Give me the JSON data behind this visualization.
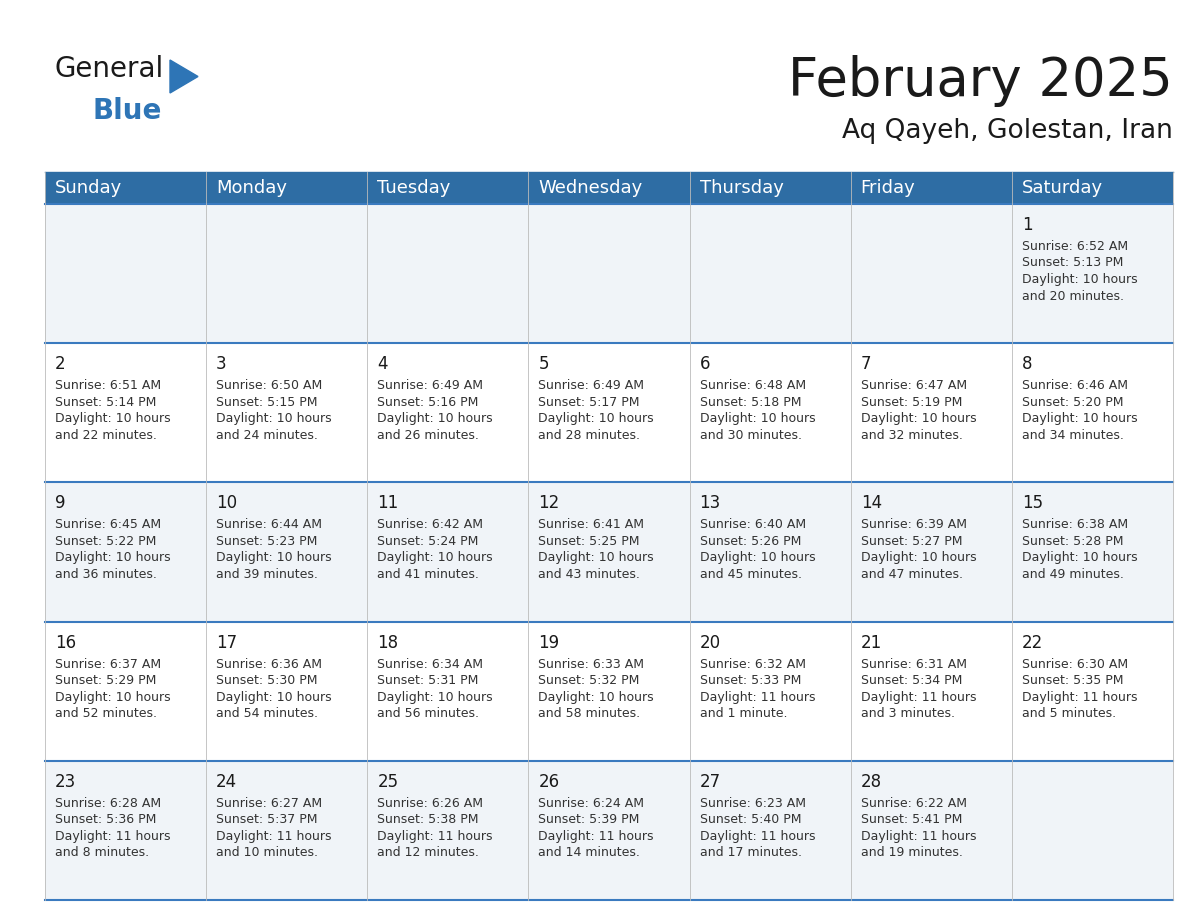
{
  "title": "February 2025",
  "subtitle": "Aq Qayeh, Golestan, Iran",
  "header_bg": "#2E6DA4",
  "header_text": "#FFFFFF",
  "row_bg_odd": "#F0F4F8",
  "row_bg_even": "#FFFFFF",
  "cell_border_color": "#3a7abf",
  "vert_border_color": "#BBBBBB",
  "day_headers": [
    "Sunday",
    "Monday",
    "Tuesday",
    "Wednesday",
    "Thursday",
    "Friday",
    "Saturday"
  ],
  "weeks": [
    [
      {
        "day": null,
        "info": null
      },
      {
        "day": null,
        "info": null
      },
      {
        "day": null,
        "info": null
      },
      {
        "day": null,
        "info": null
      },
      {
        "day": null,
        "info": null
      },
      {
        "day": null,
        "info": null
      },
      {
        "day": 1,
        "info": "Sunrise: 6:52 AM\nSunset: 5:13 PM\nDaylight: 10 hours\nand 20 minutes."
      }
    ],
    [
      {
        "day": 2,
        "info": "Sunrise: 6:51 AM\nSunset: 5:14 PM\nDaylight: 10 hours\nand 22 minutes."
      },
      {
        "day": 3,
        "info": "Sunrise: 6:50 AM\nSunset: 5:15 PM\nDaylight: 10 hours\nand 24 minutes."
      },
      {
        "day": 4,
        "info": "Sunrise: 6:49 AM\nSunset: 5:16 PM\nDaylight: 10 hours\nand 26 minutes."
      },
      {
        "day": 5,
        "info": "Sunrise: 6:49 AM\nSunset: 5:17 PM\nDaylight: 10 hours\nand 28 minutes."
      },
      {
        "day": 6,
        "info": "Sunrise: 6:48 AM\nSunset: 5:18 PM\nDaylight: 10 hours\nand 30 minutes."
      },
      {
        "day": 7,
        "info": "Sunrise: 6:47 AM\nSunset: 5:19 PM\nDaylight: 10 hours\nand 32 minutes."
      },
      {
        "day": 8,
        "info": "Sunrise: 6:46 AM\nSunset: 5:20 PM\nDaylight: 10 hours\nand 34 minutes."
      }
    ],
    [
      {
        "day": 9,
        "info": "Sunrise: 6:45 AM\nSunset: 5:22 PM\nDaylight: 10 hours\nand 36 minutes."
      },
      {
        "day": 10,
        "info": "Sunrise: 6:44 AM\nSunset: 5:23 PM\nDaylight: 10 hours\nand 39 minutes."
      },
      {
        "day": 11,
        "info": "Sunrise: 6:42 AM\nSunset: 5:24 PM\nDaylight: 10 hours\nand 41 minutes."
      },
      {
        "day": 12,
        "info": "Sunrise: 6:41 AM\nSunset: 5:25 PM\nDaylight: 10 hours\nand 43 minutes."
      },
      {
        "day": 13,
        "info": "Sunrise: 6:40 AM\nSunset: 5:26 PM\nDaylight: 10 hours\nand 45 minutes."
      },
      {
        "day": 14,
        "info": "Sunrise: 6:39 AM\nSunset: 5:27 PM\nDaylight: 10 hours\nand 47 minutes."
      },
      {
        "day": 15,
        "info": "Sunrise: 6:38 AM\nSunset: 5:28 PM\nDaylight: 10 hours\nand 49 minutes."
      }
    ],
    [
      {
        "day": 16,
        "info": "Sunrise: 6:37 AM\nSunset: 5:29 PM\nDaylight: 10 hours\nand 52 minutes."
      },
      {
        "day": 17,
        "info": "Sunrise: 6:36 AM\nSunset: 5:30 PM\nDaylight: 10 hours\nand 54 minutes."
      },
      {
        "day": 18,
        "info": "Sunrise: 6:34 AM\nSunset: 5:31 PM\nDaylight: 10 hours\nand 56 minutes."
      },
      {
        "day": 19,
        "info": "Sunrise: 6:33 AM\nSunset: 5:32 PM\nDaylight: 10 hours\nand 58 minutes."
      },
      {
        "day": 20,
        "info": "Sunrise: 6:32 AM\nSunset: 5:33 PM\nDaylight: 11 hours\nand 1 minute."
      },
      {
        "day": 21,
        "info": "Sunrise: 6:31 AM\nSunset: 5:34 PM\nDaylight: 11 hours\nand 3 minutes."
      },
      {
        "day": 22,
        "info": "Sunrise: 6:30 AM\nSunset: 5:35 PM\nDaylight: 11 hours\nand 5 minutes."
      }
    ],
    [
      {
        "day": 23,
        "info": "Sunrise: 6:28 AM\nSunset: 5:36 PM\nDaylight: 11 hours\nand 8 minutes."
      },
      {
        "day": 24,
        "info": "Sunrise: 6:27 AM\nSunset: 5:37 PM\nDaylight: 11 hours\nand 10 minutes."
      },
      {
        "day": 25,
        "info": "Sunrise: 6:26 AM\nSunset: 5:38 PM\nDaylight: 11 hours\nand 12 minutes."
      },
      {
        "day": 26,
        "info": "Sunrise: 6:24 AM\nSunset: 5:39 PM\nDaylight: 11 hours\nand 14 minutes."
      },
      {
        "day": 27,
        "info": "Sunrise: 6:23 AM\nSunset: 5:40 PM\nDaylight: 11 hours\nand 17 minutes."
      },
      {
        "day": 28,
        "info": "Sunrise: 6:22 AM\nSunset: 5:41 PM\nDaylight: 11 hours\nand 19 minutes."
      },
      {
        "day": null,
        "info": null
      }
    ]
  ],
  "logo_general_color": "#1a1a1a",
  "logo_blue_color": "#2E75B6",
  "title_fontsize": 38,
  "subtitle_fontsize": 19,
  "day_header_fontsize": 13,
  "day_number_fontsize": 12,
  "cell_text_fontsize": 9
}
